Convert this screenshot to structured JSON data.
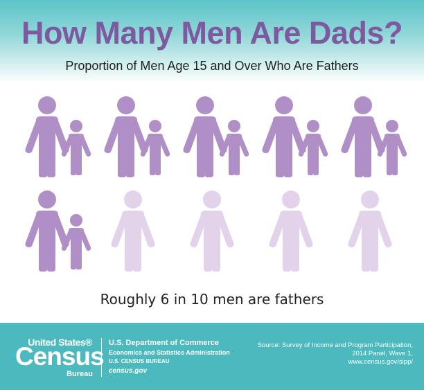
{
  "header": {
    "title": "How Many Men Are Dads?",
    "subtitle": "Proportion of Men Age 15 and Over Who Are Fathers"
  },
  "chart_data": {
    "type": "pictograph",
    "total_icons": 10,
    "fathers": 6,
    "non_fathers": 4,
    "colors": {
      "father": "#b08fc6",
      "child": "#b08fc6",
      "non_father": "#e2d3ea"
    },
    "caption": "Roughly 6 in 10 men are fathers"
  },
  "footer": {
    "logo_top": "United States®",
    "logo_main": "Census",
    "logo_bottom": "Bureau",
    "dept_line1": "U.S. Department of Commerce",
    "dept_line2": "Economics and Statistics Administration",
    "dept_line3": "U.S. CENSUS BUREAU",
    "dept_line4": "census.gov",
    "source_line1": "Source: Survey of Income and Program Participation,",
    "source_line2": "2014 Panel, Wave 1,",
    "source_line3": "www.census.gov/sipp/"
  }
}
